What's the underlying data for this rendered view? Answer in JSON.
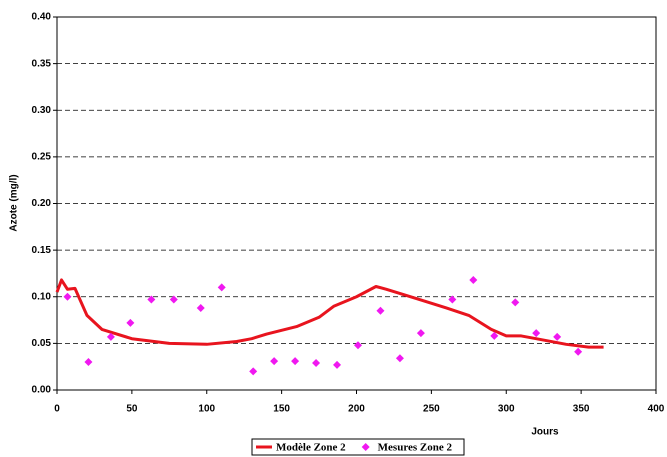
{
  "chart_data": {
    "type": "line",
    "y_label": "Azote (mg/l)",
    "x_label": "Jours",
    "xlim": [
      0,
      400
    ],
    "xticks": [
      0,
      50,
      100,
      150,
      200,
      250,
      300,
      350,
      400
    ],
    "ylim": [
      0,
      0.4
    ],
    "yticks": [
      {
        "value": 0,
        "label": "0.00"
      },
      {
        "value": 0.05,
        "label": "0.05"
      },
      {
        "value": 0.1,
        "label": "0.10"
      },
      {
        "value": 0.15,
        "label": "0.15"
      },
      {
        "value": 0.2,
        "label": "0.20"
      },
      {
        "value": 0.25,
        "label": "0.25"
      },
      {
        "value": 0.3,
        "label": "0.30"
      },
      {
        "value": 0.35,
        "label": "0.35"
      },
      {
        "value": 0.4,
        "label": "0.40"
      }
    ],
    "grid": true,
    "grid_style": "dashed",
    "legend": "bottom",
    "series": [
      {
        "name": "Modèle Zone 2",
        "color": "#e8141e",
        "style": "line",
        "x": [
          0,
          3,
          7,
          12,
          20,
          30,
          50,
          75,
          100,
          120,
          130,
          140,
          160,
          175,
          185,
          200,
          213,
          220,
          240,
          260,
          275,
          290,
          300,
          310,
          320,
          340,
          355,
          365
        ],
        "values": [
          0.105,
          0.118,
          0.108,
          0.109,
          0.08,
          0.065,
          0.055,
          0.05,
          0.049,
          0.052,
          0.055,
          0.06,
          0.068,
          0.078,
          0.09,
          0.1,
          0.111,
          0.108,
          0.098,
          0.088,
          0.08,
          0.065,
          0.058,
          0.058,
          0.055,
          0.049,
          0.046,
          0.046
        ]
      },
      {
        "name": "Mesures Zone 2",
        "color": "#f018f0",
        "style": "marker",
        "x": [
          7,
          21,
          36,
          49,
          63,
          78,
          96,
          110,
          131,
          145,
          159,
          173,
          187,
          201,
          216,
          229,
          243,
          264,
          278,
          292,
          306,
          320,
          334,
          348
        ],
        "values": [
          0.1,
          0.03,
          0.057,
          0.072,
          0.097,
          0.097,
          0.088,
          0.11,
          0.02,
          0.031,
          0.031,
          0.029,
          0.027,
          0.048,
          0.085,
          0.034,
          0.061,
          0.097,
          0.118,
          0.058,
          0.094,
          0.061,
          0.057,
          0.041
        ]
      }
    ]
  }
}
